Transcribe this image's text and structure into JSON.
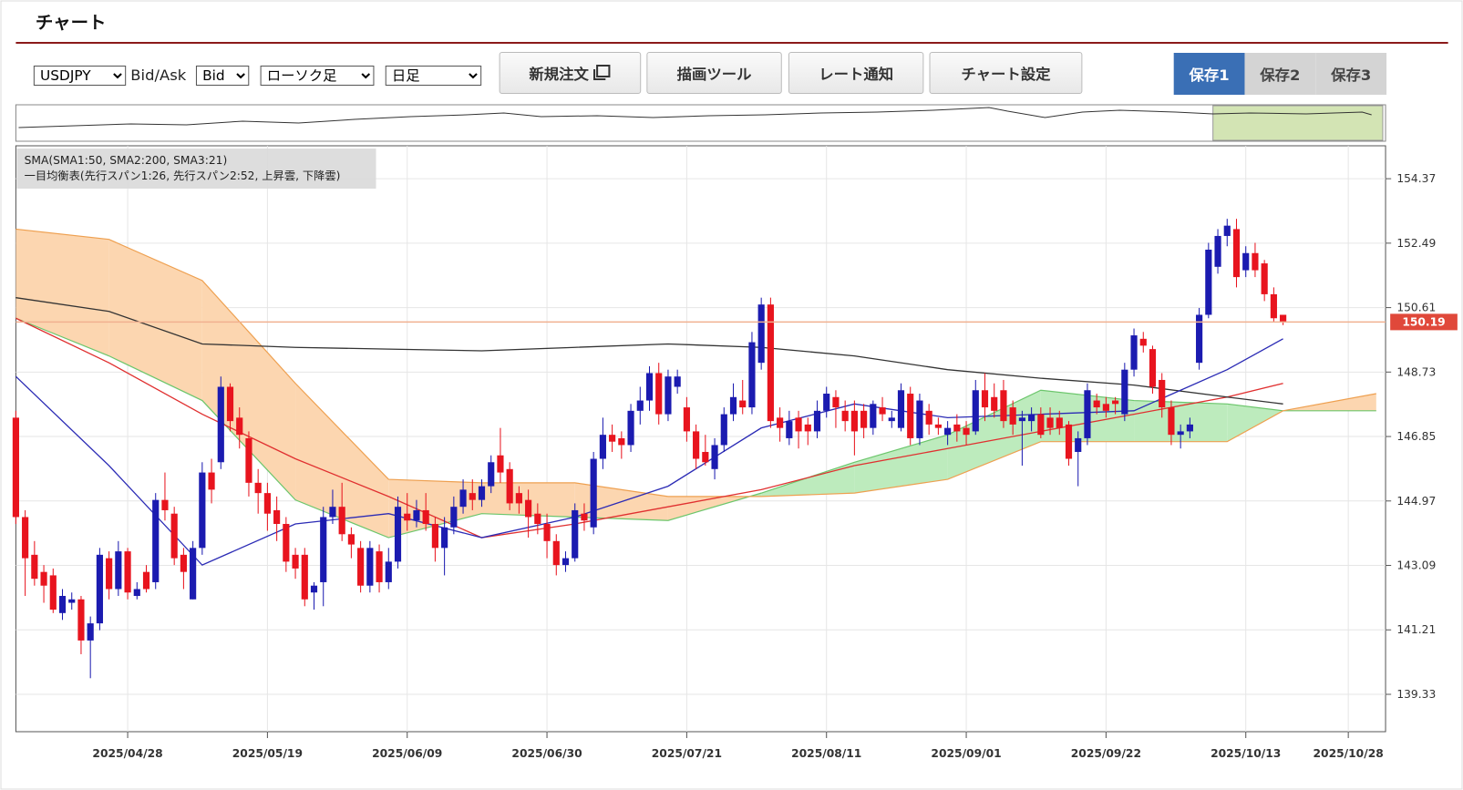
{
  "header": {
    "title": "チャート"
  },
  "toolbar": {
    "symbol": "USDJPY",
    "bid_ask_label": "Bid/Ask",
    "bid_ask": "Bid",
    "chart_type": "ローソク足",
    "period": "日足",
    "buttons": [
      "新規注文",
      "描画ツール",
      "レート通知",
      "チャート設定"
    ],
    "tabs": [
      "保存1",
      "保存2",
      "保存3"
    ]
  },
  "chart_data": {
    "type": "candlestick",
    "legend": [
      "SMA(SMA1:50, SMA2:200, SMA3:21)",
      "一目均衡表(先行スパン1:26, 先行スパン2:52, 上昇雲, 下降雲)"
    ],
    "x": [
      "2025/04/10",
      "2025/04/11",
      "2025/04/14",
      "2025/04/15",
      "2025/04/16",
      "2025/04/17",
      "2025/04/18",
      "2025/04/21",
      "2025/04/22",
      "2025/04/23",
      "2025/04/24",
      "2025/04/25",
      "2025/04/28",
      "2025/04/29",
      "2025/04/30",
      "2025/05/01",
      "2025/05/02",
      "2025/05/05",
      "2025/05/06",
      "2025/05/07",
      "2025/05/08",
      "2025/05/09",
      "2025/05/12",
      "2025/05/13",
      "2025/05/14",
      "2025/05/15",
      "2025/05/16",
      "2025/05/19",
      "2025/05/20",
      "2025/05/21",
      "2025/05/22",
      "2025/05/23",
      "2025/05/26",
      "2025/05/27",
      "2025/05/28",
      "2025/05/29",
      "2025/05/30",
      "2025/06/02",
      "2025/06/03",
      "2025/06/04",
      "2025/06/05",
      "2025/06/06",
      "2025/06/09",
      "2025/06/10",
      "2025/06/11",
      "2025/06/12",
      "2025/06/13",
      "2025/06/16",
      "2025/06/17",
      "2025/06/18",
      "2025/06/19",
      "2025/06/20",
      "2025/06/23",
      "2025/06/24",
      "2025/06/25",
      "2025/06/26",
      "2025/06/27",
      "2025/06/30",
      "2025/07/01",
      "2025/07/02",
      "2025/07/03",
      "2025/07/04",
      "2025/07/07",
      "2025/07/08",
      "2025/07/09",
      "2025/07/10",
      "2025/07/11",
      "2025/07/14",
      "2025/07/15",
      "2025/07/16",
      "2025/07/17",
      "2025/07/18",
      "2025/07/21",
      "2025/07/22",
      "2025/07/23",
      "2025/07/24",
      "2025/07/25",
      "2025/07/28",
      "2025/07/29",
      "2025/07/30",
      "2025/07/31",
      "2025/08/01",
      "2025/08/04",
      "2025/08/05",
      "2025/08/06",
      "2025/08/07",
      "2025/08/08",
      "2025/08/11",
      "2025/08/12",
      "2025/08/13",
      "2025/08/14",
      "2025/08/15",
      "2025/08/18",
      "2025/08/19",
      "2025/08/20",
      "2025/08/21",
      "2025/08/22",
      "2025/08/25",
      "2025/08/26",
      "2025/08/27",
      "2025/08/28",
      "2025/08/29",
      "2025/09/01",
      "2025/09/02",
      "2025/09/03",
      "2025/09/04",
      "2025/09/05",
      "2025/09/08",
      "2025/09/09",
      "2025/09/10",
      "2025/09/11",
      "2025/09/12",
      "2025/09/15",
      "2025/09/16",
      "2025/09/17",
      "2025/09/18",
      "2025/09/19",
      "2025/09/22",
      "2025/09/23",
      "2025/09/24",
      "2025/09/25",
      "2025/09/26",
      "2025/09/29",
      "2025/09/30",
      "2025/10/01",
      "2025/10/02",
      "2025/10/03",
      "2025/10/06",
      "2025/10/07",
      "2025/10/08",
      "2025/10/09",
      "2025/10/10",
      "2025/10/13",
      "2025/10/14",
      "2025/10/15",
      "2025/10/16",
      "2025/10/17"
    ],
    "open": [
      147.4,
      144.5,
      143.4,
      142.9,
      142.8,
      141.7,
      142.0,
      142.1,
      140.9,
      141.4,
      143.3,
      142.4,
      143.5,
      142.2,
      142.9,
      142.6,
      145.0,
      144.6,
      143.4,
      142.1,
      143.6,
      145.8,
      146.1,
      148.3,
      147.4,
      146.8,
      145.5,
      145.2,
      144.7,
      144.3,
      143.4,
      143.4,
      142.3,
      142.6,
      144.5,
      144.8,
      144.0,
      143.6,
      142.5,
      143.5,
      142.6,
      143.2,
      144.6,
      144.4,
      144.7,
      144.3,
      143.6,
      144.2,
      144.8,
      145.2,
      145.0,
      145.4,
      146.3,
      145.9,
      145.2,
      145.0,
      144.6,
      144.3,
      143.8,
      143.1,
      143.3,
      144.6,
      144.2,
      146.2,
      146.9,
      146.8,
      146.6,
      147.6,
      147.9,
      148.7,
      147.5,
      148.3,
      147.7,
      147.0,
      146.4,
      145.9,
      146.6,
      147.5,
      147.9,
      147.7,
      149.0,
      150.7,
      147.4,
      146.8,
      147.4,
      147.2,
      147.0,
      147.6,
      148.0,
      147.6,
      147.6,
      147.6,
      147.1,
      147.7,
      147.3,
      147.1,
      148.1,
      146.8,
      147.6,
      147.2,
      146.9,
      147.2,
      147.1,
      147.0,
      148.2,
      148.0,
      148.2,
      147.7,
      147.3,
      147.3,
      147.5,
      147.4,
      147.4,
      147.2,
      146.4,
      146.8,
      147.9,
      147.8,
      147.9,
      147.5,
      148.8,
      149.7,
      149.4,
      148.5,
      147.7,
      146.9,
      147.0,
      149.0,
      150.4,
      151.8,
      152.7,
      152.9,
      151.7,
      152.2,
      151.9,
      151.0,
      150.4
    ],
    "high": [
      147.6,
      144.7,
      143.8,
      143.1,
      143.0,
      142.4,
      142.3,
      142.2,
      141.6,
      143.6,
      143.5,
      143.8,
      143.6,
      142.6,
      143.1,
      145.2,
      145.8,
      144.8,
      143.6,
      143.8,
      146.1,
      146.2,
      148.6,
      148.4,
      147.7,
      147.0,
      145.9,
      145.5,
      145.1,
      144.5,
      143.6,
      143.6,
      142.6,
      144.8,
      145.3,
      145.5,
      144.2,
      143.8,
      143.8,
      143.7,
      143.6,
      145.1,
      145.2,
      145.0,
      145.2,
      144.5,
      144.5,
      145.1,
      145.6,
      145.6,
      145.6,
      146.3,
      147.1,
      146.1,
      145.4,
      145.3,
      144.9,
      144.6,
      144.0,
      143.5,
      144.9,
      144.9,
      146.4,
      147.4,
      147.2,
      147.0,
      147.8,
      148.3,
      148.9,
      149.0,
      148.8,
      148.8,
      148.0,
      147.2,
      146.9,
      146.8,
      147.7,
      148.4,
      148.5,
      149.9,
      150.9,
      150.9,
      147.7,
      147.6,
      147.6,
      147.4,
      147.9,
      148.3,
      148.2,
      147.9,
      147.9,
      147.8,
      147.9,
      148.0,
      147.6,
      148.4,
      148.3,
      148.1,
      147.8,
      147.4,
      147.3,
      147.5,
      147.3,
      148.5,
      148.7,
      148.4,
      148.5,
      147.9,
      147.6,
      147.7,
      147.7,
      147.7,
      147.6,
      147.3,
      147.0,
      148.4,
      148.1,
      148.0,
      148.0,
      149.0,
      150.0,
      149.9,
      149.5,
      148.7,
      147.9,
      147.2,
      147.4,
      150.6,
      152.5,
      152.9,
      153.2,
      153.2,
      152.4,
      152.5,
      152.0,
      151.2,
      150.4
    ],
    "low": [
      144.3,
      142.2,
      142.5,
      142.0,
      141.7,
      141.5,
      141.8,
      140.5,
      139.8,
      141.2,
      142.1,
      142.2,
      142.1,
      142.1,
      142.3,
      142.4,
      144.4,
      143.1,
      142.4,
      142.1,
      143.4,
      144.9,
      145.9,
      147.0,
      146.5,
      145.1,
      144.6,
      144.1,
      143.8,
      142.9,
      142.7,
      141.9,
      141.8,
      141.9,
      144.3,
      143.8,
      143.3,
      142.3,
      142.3,
      142.3,
      142.4,
      143.0,
      144.1,
      144.2,
      144.1,
      143.2,
      142.8,
      144.0,
      144.6,
      144.7,
      144.8,
      145.2,
      145.5,
      144.7,
      144.6,
      143.9,
      144.0,
      143.3,
      142.8,
      142.9,
      143.2,
      144.1,
      144.0,
      145.9,
      146.4,
      146.2,
      146.4,
      147.2,
      147.6,
      147.2,
      147.3,
      148.1,
      146.7,
      145.9,
      146.0,
      145.6,
      146.4,
      147.3,
      147.5,
      147.5,
      148.8,
      147.1,
      146.7,
      146.6,
      146.5,
      146.6,
      146.8,
      147.4,
      147.1,
      147.0,
      146.3,
      146.8,
      146.9,
      147.3,
      147.1,
      147.0,
      146.6,
      146.6,
      146.9,
      146.9,
      146.6,
      146.7,
      146.6,
      146.9,
      147.3,
      147.4,
      147.1,
      146.9,
      146.0,
      147.0,
      146.8,
      146.9,
      146.9,
      146.0,
      145.4,
      146.6,
      147.5,
      147.4,
      147.5,
      147.3,
      148.6,
      149.3,
      148.1,
      147.4,
      146.6,
      146.5,
      146.8,
      148.8,
      150.3,
      151.6,
      152.4,
      151.2,
      151.5,
      151.5,
      150.8,
      150.2,
      150.1
    ],
    "close": [
      144.5,
      143.3,
      142.7,
      142.5,
      141.8,
      142.2,
      142.1,
      140.9,
      141.4,
      143.4,
      142.4,
      143.5,
      142.3,
      142.4,
      142.4,
      145.0,
      144.7,
      143.3,
      142.9,
      143.6,
      145.8,
      145.3,
      148.3,
      147.3,
      146.9,
      145.5,
      145.2,
      144.6,
      144.3,
      143.2,
      143.0,
      142.1,
      142.5,
      144.5,
      144.8,
      144.0,
      143.7,
      142.5,
      143.6,
      142.6,
      143.2,
      144.8,
      144.4,
      144.7,
      144.3,
      143.6,
      144.2,
      144.8,
      145.3,
      145.0,
      145.4,
      146.1,
      145.8,
      144.9,
      144.9,
      144.5,
      144.3,
      143.8,
      143.1,
      143.3,
      144.7,
      144.4,
      146.2,
      146.9,
      146.7,
      146.6,
      147.6,
      147.9,
      148.7,
      147.5,
      148.6,
      148.6,
      147.0,
      146.2,
      146.1,
      146.6,
      147.5,
      148.0,
      147.7,
      149.6,
      150.7,
      147.3,
      147.1,
      147.3,
      147.0,
      147.0,
      147.6,
      148.1,
      147.7,
      147.3,
      147.0,
      147.1,
      147.8,
      147.5,
      147.4,
      148.2,
      146.8,
      147.9,
      147.2,
      147.1,
      147.1,
      147.0,
      146.9,
      148.2,
      147.7,
      147.6,
      147.3,
      147.2,
      147.4,
      147.5,
      146.9,
      147.1,
      147.1,
      146.2,
      146.8,
      148.2,
      147.7,
      147.6,
      147.8,
      148.8,
      149.8,
      149.5,
      148.3,
      147.7,
      146.9,
      147.0,
      147.2,
      150.4,
      152.3,
      152.7,
      153.0,
      151.5,
      152.2,
      151.7,
      151.0,
      150.3,
      150.19
    ],
    "up_color": "#1b1bb0",
    "down_color": "#e8141e",
    "ylim": [
      138.24,
      155.33
    ],
    "yticks": [
      154.37,
      152.49,
      150.61,
      148.73,
      146.85,
      144.97,
      143.09,
      141.21,
      139.33
    ],
    "xlim": [
      "2025/04/10",
      "2025/11/03"
    ],
    "xticks": [
      "2025/04/28",
      "2025/05/19",
      "2025/06/09",
      "2025/06/30",
      "2025/07/21",
      "2025/08/11",
      "2025/09/01",
      "2025/09/22",
      "2025/10/13",
      "2025/10/28"
    ],
    "grid": true,
    "current_price": 150.19,
    "current_price_color": "#e0483a",
    "indicators": {
      "x": [
        "2025/04/10",
        "2025/04/24",
        "2025/05/08",
        "2025/05/22",
        "2025/06/05",
        "2025/06/19",
        "2025/07/03",
        "2025/07/17",
        "2025/07/31",
        "2025/08/14",
        "2025/08/28",
        "2025/09/11",
        "2025/09/25",
        "2025/10/09",
        "2025/10/17",
        "2025/10/31"
      ],
      "lines": [
        {
          "color": "#e03030",
          "values": [
            150.3,
            149.0,
            147.5,
            146.2,
            145.1,
            143.9,
            144.3,
            144.8,
            145.3,
            146.0,
            146.5,
            147.0,
            147.5,
            148.0,
            148.4,
            null
          ]
        },
        {
          "color": "#333333",
          "values": [
            150.9,
            150.5,
            149.55,
            149.45,
            149.4,
            149.35,
            149.45,
            149.55,
            149.45,
            149.2,
            148.8,
            148.55,
            148.35,
            148.0,
            147.8,
            null
          ]
        },
        {
          "color": "#2b2bb5",
          "values": [
            148.6,
            146.0,
            143.1,
            144.3,
            144.6,
            143.9,
            144.5,
            145.4,
            147.1,
            147.8,
            147.4,
            147.5,
            147.6,
            148.8,
            149.7,
            null
          ]
        }
      ],
      "span1": {
        "color": "#6cc66c",
        "values": [
          150.3,
          149.2,
          147.9,
          145.0,
          143.9,
          144.6,
          144.5,
          144.4,
          145.2,
          146.1,
          146.9,
          148.2,
          147.9,
          147.8,
          147.6,
          147.6
        ]
      },
      "span2": {
        "color": "#eea050",
        "values": [
          152.9,
          152.6,
          151.4,
          148.4,
          145.6,
          145.5,
          145.5,
          145.1,
          145.1,
          145.2,
          145.6,
          146.7,
          146.7,
          146.7,
          147.6,
          148.1
        ]
      },
      "up_fill": "#bdebbd",
      "down_fill": "#fcd6b0"
    }
  }
}
